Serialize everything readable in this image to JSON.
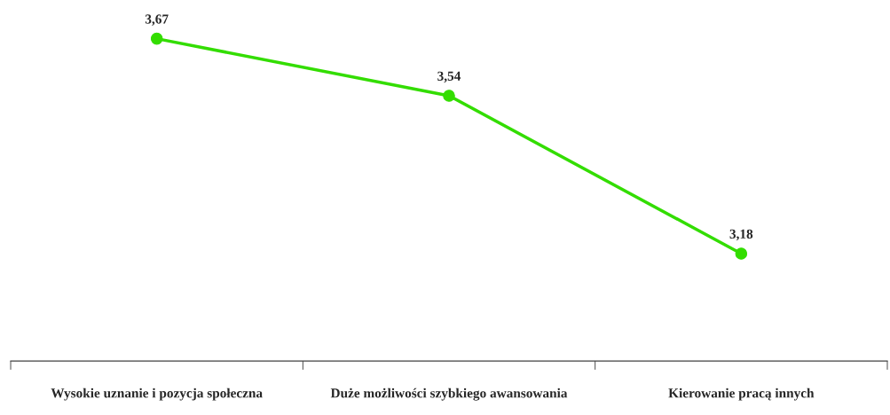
{
  "chart_data": {
    "type": "line",
    "categories": [
      "Wysokie uznanie i pozycja społeczna",
      "Duże możliwości szybkiego awansowania",
      "Kierowanie pracą innych"
    ],
    "series": [
      {
        "color": "#33dd00",
        "values": [
          3.67,
          3.54,
          3.18
        ],
        "value_labels": [
          "3,67",
          "3,54",
          "3,18"
        ]
      }
    ],
    "marker": "circle",
    "line_style": "solid",
    "grid": false,
    "legend": false,
    "tick_labels": "x"
  }
}
